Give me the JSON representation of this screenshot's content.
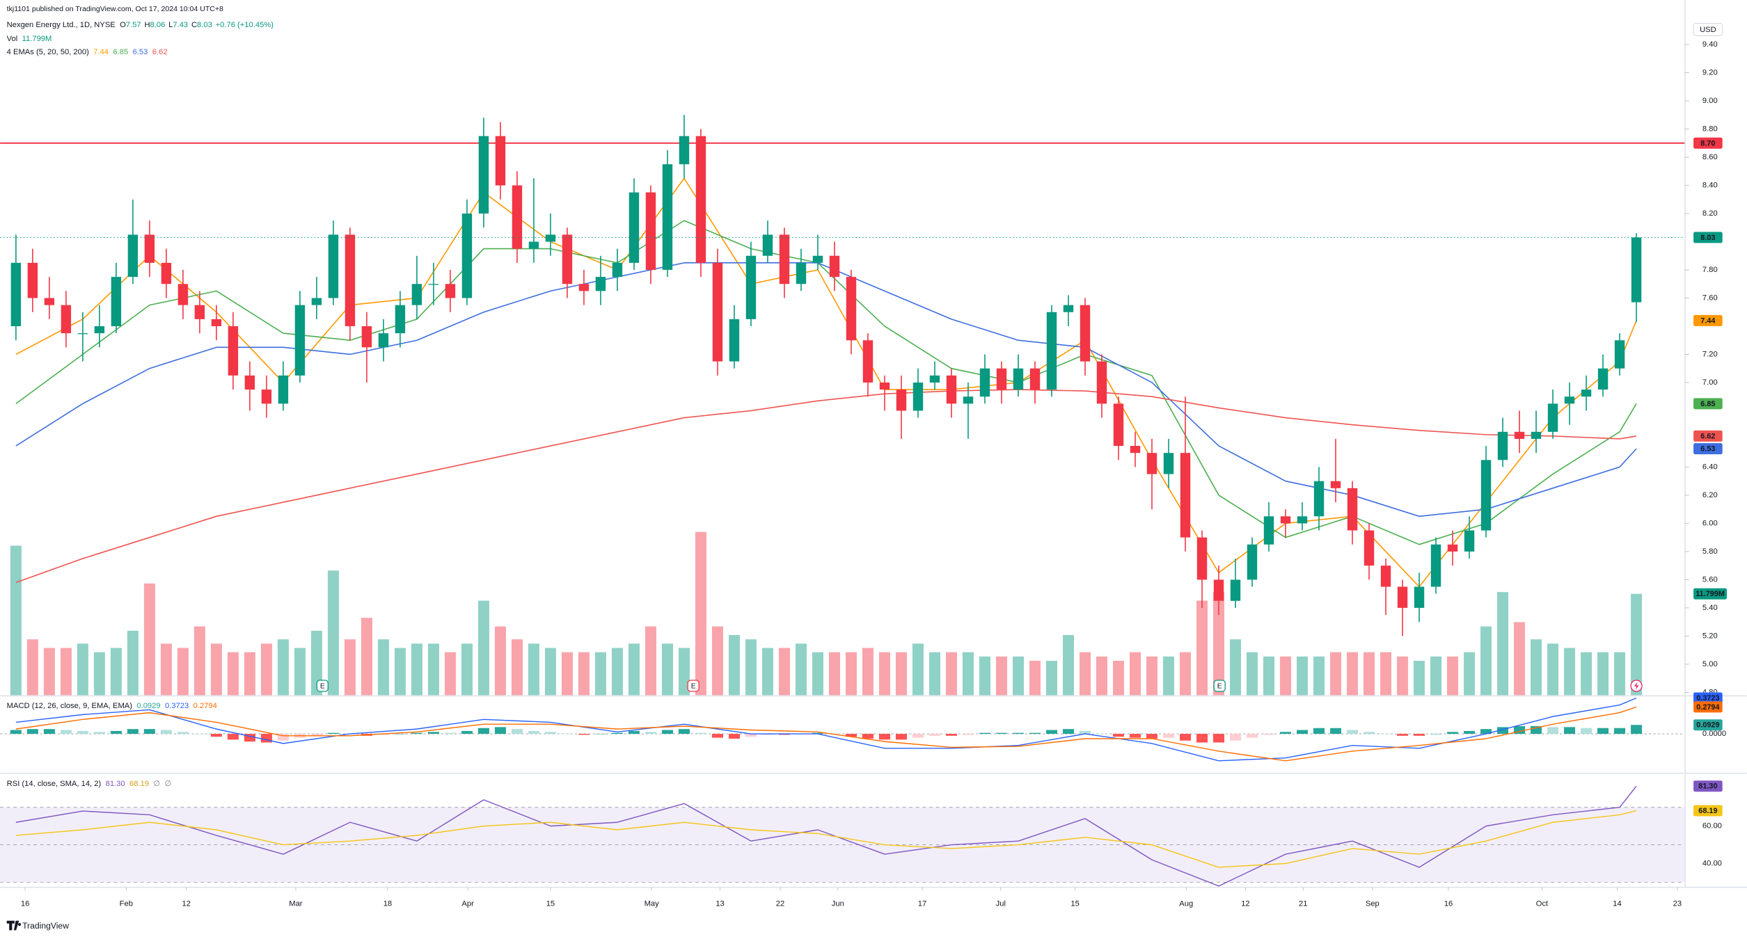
{
  "chart_data": {
    "type": "candlestick",
    "publisher": "tkj1101 published on TradingView.com, Oct 17, 2024 10:04 UTC+8",
    "title": "Nexgen Energy Ltd., 1D, NYSE",
    "ohlc_legend": {
      "o": "O",
      "h": "H",
      "l": "L",
      "c": "C",
      "change": "+0.76 (+10.45%)"
    },
    "currency": "USD",
    "up_color": "#089981",
    "down_color": "#f23645",
    "x": [
      -1,
      1,
      3,
      5,
      7,
      9,
      11,
      13,
      15,
      17,
      19,
      21,
      23,
      25,
      27,
      29,
      31,
      33,
      35,
      37,
      39,
      41,
      43,
      45,
      47,
      49,
      51,
      53,
      55,
      57,
      59,
      61,
      63,
      65,
      67,
      69,
      71,
      73,
      75,
      77,
      79,
      81,
      83,
      85,
      87,
      89,
      91,
      93,
      95,
      97,
      99,
      101,
      103,
      105,
      107,
      109,
      111,
      113,
      115,
      117,
      119,
      121,
      123,
      125,
      127,
      129,
      131,
      133,
      135,
      137,
      139,
      141,
      143,
      145,
      147,
      149,
      151,
      153,
      155,
      157,
      159,
      161,
      163,
      165,
      167,
      169,
      171,
      173,
      175,
      177,
      179,
      181,
      183,
      185,
      187,
      189,
      191,
      193
    ],
    "open": [
      7.4,
      7.85,
      7.6,
      7.55,
      7.35,
      7.35,
      7.4,
      7.75,
      8.05,
      7.85,
      7.7,
      7.55,
      7.45,
      7.4,
      7.05,
      6.95,
      6.85,
      7.05,
      7.55,
      7.6,
      8.05,
      7.4,
      7.25,
      7.35,
      7.55,
      7.7,
      7.7,
      7.6,
      8.2,
      8.75,
      8.4,
      7.95,
      8.0,
      8.05,
      7.7,
      7.65,
      7.75,
      7.85,
      8.35,
      7.8,
      8.55,
      8.75,
      7.85,
      7.15,
      7.45,
      7.9,
      8.05,
      7.7,
      7.85,
      7.9,
      7.75,
      7.3,
      7.0,
      6.95,
      6.8,
      7.0,
      7.05,
      6.85,
      6.9,
      7.1,
      6.95,
      7.1,
      6.95,
      7.5,
      7.55,
      7.15,
      6.85,
      6.55,
      6.5,
      6.35,
      6.5,
      5.9,
      5.6,
      5.45,
      5.6,
      5.85,
      6.05,
      6.0,
      6.05,
      6.3,
      6.25,
      5.95,
      5.7,
      5.55,
      5.4,
      5.55,
      5.85,
      5.8,
      5.95,
      6.45,
      6.65,
      6.6,
      6.65,
      6.85,
      6.9,
      6.95,
      7.1,
      7.57
    ],
    "high": [
      8.05,
      7.95,
      7.75,
      7.65,
      7.5,
      7.55,
      7.85,
      8.3,
      8.15,
      7.95,
      7.8,
      7.65,
      7.55,
      7.5,
      7.15,
      7.05,
      7.15,
      7.65,
      7.75,
      8.15,
      8.1,
      7.5,
      7.45,
      7.65,
      7.9,
      7.85,
      7.8,
      8.3,
      8.88,
      8.85,
      8.5,
      8.45,
      8.2,
      8.1,
      7.8,
      7.9,
      7.95,
      8.45,
      8.4,
      8.65,
      8.9,
      8.8,
      7.95,
      7.55,
      8.0,
      8.15,
      8.1,
      7.95,
      8.05,
      8.0,
      7.8,
      7.35,
      7.05,
      7.05,
      7.1,
      7.15,
      7.1,
      7.0,
      7.2,
      7.15,
      7.2,
      7.15,
      7.55,
      7.62,
      7.6,
      7.2,
      6.9,
      6.65,
      6.6,
      6.6,
      6.9,
      5.95,
      5.7,
      5.75,
      5.9,
      6.15,
      6.1,
      6.15,
      6.4,
      6.6,
      6.3,
      6.0,
      5.75,
      5.6,
      5.65,
      5.9,
      5.95,
      6.05,
      6.55,
      6.75,
      6.8,
      6.8,
      6.95,
      7.0,
      7.05,
      7.2,
      7.35,
      8.06
    ],
    "low": [
      7.3,
      7.5,
      7.45,
      7.25,
      7.15,
      7.25,
      7.35,
      7.7,
      7.75,
      7.6,
      7.45,
      7.35,
      7.3,
      6.95,
      6.8,
      6.75,
      6.8,
      7.0,
      7.45,
      7.55,
      7.3,
      7.0,
      7.15,
      7.25,
      7.45,
      7.55,
      7.5,
      7.55,
      8.1,
      8.3,
      7.85,
      7.85,
      7.9,
      7.6,
      7.55,
      7.55,
      7.65,
      7.8,
      7.7,
      7.75,
      8.45,
      7.75,
      7.05,
      7.1,
      7.4,
      7.85,
      7.6,
      7.65,
      7.8,
      7.65,
      7.2,
      6.9,
      6.8,
      6.6,
      6.75,
      6.95,
      6.75,
      6.6,
      6.85,
      6.85,
      6.9,
      6.85,
      6.9,
      7.4,
      7.05,
      6.75,
      6.45,
      6.4,
      6.1,
      6.25,
      5.8,
      5.4,
      5.35,
      5.4,
      5.55,
      5.8,
      5.9,
      5.95,
      5.95,
      6.15,
      5.85,
      5.6,
      5.35,
      5.2,
      5.3,
      5.5,
      5.7,
      5.75,
      5.9,
      6.4,
      6.5,
      6.5,
      6.6,
      6.7,
      6.8,
      6.9,
      7.05,
      7.43
    ],
    "close": [
      7.85,
      7.6,
      7.55,
      7.35,
      7.35,
      7.4,
      7.75,
      8.05,
      7.85,
      7.7,
      7.55,
      7.45,
      7.4,
      7.05,
      6.95,
      6.85,
      7.05,
      7.55,
      7.6,
      8.05,
      7.4,
      7.25,
      7.35,
      7.55,
      7.7,
      7.7,
      7.6,
      8.2,
      8.75,
      8.4,
      7.95,
      8.0,
      8.05,
      7.7,
      7.65,
      7.75,
      7.85,
      8.35,
      7.8,
      8.55,
      8.75,
      7.85,
      7.15,
      7.45,
      7.9,
      8.05,
      7.7,
      7.85,
      7.9,
      7.75,
      7.3,
      7.0,
      6.95,
      6.8,
      7.0,
      7.05,
      6.85,
      6.9,
      7.1,
      6.95,
      7.1,
      6.95,
      7.5,
      7.55,
      7.15,
      6.85,
      6.55,
      6.5,
      6.35,
      6.5,
      5.9,
      5.6,
      5.45,
      5.6,
      5.85,
      6.05,
      6.0,
      6.05,
      6.3,
      6.25,
      5.95,
      5.7,
      5.55,
      5.4,
      5.55,
      5.85,
      5.8,
      5.95,
      6.45,
      6.65,
      6.6,
      6.65,
      6.85,
      6.9,
      6.95,
      7.1,
      7.3,
      8.03
    ],
    "xlim": [
      -2.9,
      198.5
    ],
    "xticks": [
      {
        "value": 0.1,
        "label": "16"
      },
      {
        "value": 12.2,
        "label": "Feb"
      },
      {
        "value": 19.4,
        "label": "12"
      },
      {
        "value": 32.5,
        "label": "Mar"
      },
      {
        "value": 43.5,
        "label": "18"
      },
      {
        "value": 53.1,
        "label": "Apr"
      },
      {
        "value": 63,
        "label": "15"
      },
      {
        "value": 75.1,
        "label": "May"
      },
      {
        "value": 83.3,
        "label": "13"
      },
      {
        "value": 90.5,
        "label": "22"
      },
      {
        "value": 97.4,
        "label": "Jun"
      },
      {
        "value": 107.5,
        "label": "17"
      },
      {
        "value": 116.9,
        "label": "Jul"
      },
      {
        "value": 125.8,
        "label": "15"
      },
      {
        "value": 139.1,
        "label": "Aug"
      },
      {
        "value": 146.2,
        "label": "12"
      },
      {
        "value": 153.1,
        "label": "21"
      },
      {
        "value": 161.4,
        "label": "Sep"
      },
      {
        "value": 170.5,
        "label": "16"
      },
      {
        "value": 181.7,
        "label": "Oct"
      },
      {
        "value": 190.7,
        "label": "14"
      },
      {
        "value": 197.9,
        "label": "23"
      }
    ],
    "ylim": [
      4.78,
      9.6
    ],
    "yticks": [
      {
        "value": 9.4,
        "label": "9.40"
      },
      {
        "value": 9.2,
        "label": "9.20"
      },
      {
        "value": 9,
        "label": "9.00"
      },
      {
        "value": 8.8,
        "label": "8.80"
      },
      {
        "value": 8.6,
        "label": "8.60"
      },
      {
        "value": 8.4,
        "label": "8.40"
      },
      {
        "value": 8.2,
        "label": "8.20"
      },
      {
        "value": 7.8,
        "label": "7.80"
      },
      {
        "value": 7.6,
        "label": "7.60"
      },
      {
        "value": 7.2,
        "label": "7.20"
      },
      {
        "value": 7,
        "label": "7.00"
      },
      {
        "value": 6.4,
        "label": "6.40"
      },
      {
        "value": 6.2,
        "label": "6.20"
      },
      {
        "value": 6,
        "label": "6.00"
      },
      {
        "value": 5.8,
        "label": "5.80"
      },
      {
        "value": 5.6,
        "label": "5.60"
      },
      {
        "value": 5.4,
        "label": "5.40"
      },
      {
        "value": 5.2,
        "label": "5.20"
      },
      {
        "value": 5,
        "label": "5.00"
      },
      {
        "value": 4.8,
        "label": "4.80"
      }
    ],
    "hline": {
      "value": 8.7,
      "label": "8.70",
      "color": "#f23645"
    },
    "volume": {
      "name": "Vol",
      "ylim": [
        0,
        79
      ],
      "last_label": "11.799M",
      "values": [
        17.4,
        6.5,
        5.5,
        5.5,
        6,
        5,
        5.5,
        7.5,
        13,
        6,
        5.5,
        8,
        6,
        5,
        5,
        6,
        6.5,
        5.5,
        7.5,
        14.5,
        6.5,
        9,
        6.5,
        5.5,
        6,
        6,
        5,
        6,
        11,
        8,
        6.5,
        6,
        5.5,
        5,
        5,
        5,
        5.5,
        6,
        8,
        6,
        5.5,
        19,
        8,
        7,
        6.5,
        5.5,
        5.5,
        6,
        5,
        5,
        5,
        5.5,
        5,
        5,
        6,
        5,
        5,
        5,
        4.5,
        4.5,
        4.5,
        4,
        4,
        7,
        5,
        4.5,
        4,
        5,
        4.5,
        4.5,
        5,
        11,
        12,
        6.5,
        5,
        4.5,
        4.5,
        4.5,
        4.5,
        5,
        5,
        5,
        5,
        4.5,
        4,
        4.5,
        4.5,
        5,
        8,
        12,
        8.5,
        6.5,
        6,
        5.5,
        5,
        5,
        5,
        11.799
      ]
    },
    "ema": {
      "name": "4 EMAs (5, 20, 50, 200)",
      "x": [
        -1,
        7,
        15,
        23,
        31,
        39,
        47,
        55,
        63,
        71,
        79,
        87,
        95,
        103,
        111,
        119,
        127,
        135,
        143,
        151,
        159,
        167,
        175,
        183,
        191,
        193
      ],
      "series": [
        {
          "color": "#ff9800",
          "values": [
            7.2,
            7.45,
            7.9,
            7.5,
            7.0,
            7.55,
            7.6,
            8.35,
            8.0,
            7.8,
            8.45,
            7.7,
            7.8,
            6.95,
            6.95,
            7.0,
            7.3,
            6.45,
            5.65,
            6.0,
            6.05,
            5.55,
            6.15,
            6.75,
            7.15,
            7.44
          ]
        },
        {
          "color": "#4caf50",
          "values": [
            6.85,
            7.2,
            7.55,
            7.65,
            7.35,
            7.3,
            7.45,
            7.95,
            7.95,
            7.85,
            8.15,
            7.95,
            7.85,
            7.4,
            7.1,
            7.0,
            7.2,
            7.05,
            6.2,
            5.9,
            6.05,
            5.85,
            6.0,
            6.35,
            6.65,
            6.85
          ]
        },
        {
          "color": "#3d6ee0",
          "values": [
            6.55,
            6.85,
            7.1,
            7.25,
            7.25,
            7.2,
            7.3,
            7.5,
            7.65,
            7.75,
            7.85,
            7.85,
            7.85,
            7.65,
            7.45,
            7.3,
            7.25,
            7.0,
            6.55,
            6.3,
            6.2,
            6.05,
            6.1,
            6.25,
            6.4,
            6.53
          ]
        },
        {
          "color": "#ef5350",
          "values": [
            5.58,
            5.75,
            5.9,
            6.05,
            6.15,
            6.25,
            6.35,
            6.45,
            6.55,
            6.65,
            6.75,
            6.8,
            6.87,
            6.92,
            6.94,
            6.95,
            6.94,
            6.9,
            6.82,
            6.75,
            6.7,
            6.66,
            6.63,
            6.62,
            6.6,
            6.62
          ]
        }
      ]
    },
    "earnings": {
      "label": "E",
      "x": [
        35.7,
        80.1,
        143.1
      ]
    },
    "macd": {
      "name": "MACD (12, 26, close, 9, EMA, EMA)",
      "ylim": [
        -0.38,
        0.36
      ],
      "yticks": [
        {
          "value": 0,
          "label": "0.0000"
        }
      ],
      "x": [
        -1,
        7,
        15,
        23,
        31,
        39,
        47,
        55,
        63,
        71,
        79,
        87,
        95,
        103,
        111,
        119,
        127,
        135,
        143,
        151,
        159,
        167,
        175,
        183,
        191,
        193
      ],
      "macd": {
        "color": "#2962ff",
        "values": [
          0.12,
          0.2,
          0.25,
          0.05,
          -0.1,
          0.0,
          0.05,
          0.15,
          0.12,
          0.02,
          0.1,
          0.0,
          0.0,
          -0.15,
          -0.15,
          -0.12,
          0.0,
          -0.1,
          -0.28,
          -0.25,
          -0.12,
          -0.15,
          0.0,
          0.18,
          0.3,
          0.3723
        ]
      },
      "signal": {
        "color": "#ff6d00",
        "values": [
          0.05,
          0.15,
          0.22,
          0.12,
          -0.02,
          -0.02,
          0.02,
          0.1,
          0.1,
          0.05,
          0.08,
          0.04,
          0.02,
          -0.08,
          -0.14,
          -0.13,
          -0.05,
          -0.05,
          -0.18,
          -0.28,
          -0.18,
          -0.12,
          -0.05,
          0.1,
          0.22,
          0.2794
        ]
      },
      "histogram_color": "#26a69a",
      "histogram": [
        0.04,
        0.05,
        0.05,
        0.04,
        0.03,
        0.02,
        0.03,
        0.05,
        0.05,
        0.04,
        0.02,
        0.0,
        -0.03,
        -0.06,
        -0.08,
        -0.09,
        -0.07,
        -0.04,
        -0.02,
        0.01,
        0.0,
        -0.02,
        -0.01,
        0.0,
        0.01,
        0.02,
        0.01,
        0.03,
        0.06,
        0.07,
        0.05,
        0.03,
        0.02,
        0.0,
        -0.01,
        0.0,
        0.01,
        0.03,
        0.02,
        0.04,
        0.05,
        0.01,
        -0.04,
        -0.05,
        -0.03,
        -0.01,
        -0.01,
        0.0,
        0.01,
        0.0,
        -0.03,
        -0.05,
        -0.06,
        -0.06,
        -0.04,
        -0.02,
        -0.02,
        -0.01,
        0.01,
        0.01,
        0.01,
        0.01,
        0.04,
        0.05,
        0.03,
        0.0,
        -0.03,
        -0.04,
        -0.05,
        -0.04,
        -0.07,
        -0.09,
        -0.09,
        -0.07,
        -0.04,
        -0.01,
        0.02,
        0.04,
        0.06,
        0.06,
        0.04,
        0.02,
        0.0,
        -0.02,
        -0.02,
        0.0,
        0.02,
        0.03,
        0.05,
        0.07,
        0.08,
        0.08,
        0.07,
        0.07,
        0.06,
        0.06,
        0.06,
        0.0929
      ]
    },
    "rsi": {
      "name": "RSI (14, close, SMA, 14, 2)",
      "ylim": [
        27.9,
        86.7
      ],
      "yticks": [
        {
          "value": 60,
          "label": "60.00"
        },
        {
          "value": 40,
          "label": "40.00"
        }
      ],
      "bands": [
        70,
        50,
        30
      ],
      "x": [
        -1,
        7,
        15,
        23,
        31,
        39,
        47,
        55,
        63,
        71,
        79,
        87,
        95,
        103,
        111,
        119,
        127,
        135,
        143,
        151,
        159,
        167,
        175,
        183,
        191,
        193
      ],
      "rsi": {
        "color": "#7e57c2",
        "last_label": "81.30",
        "values": [
          62,
          68,
          66,
          55,
          45,
          62,
          52,
          74,
          60,
          62,
          72,
          52,
          58,
          45,
          50,
          52,
          64,
          42,
          28,
          45,
          52,
          38,
          60,
          66,
          70,
          81.3
        ]
      },
      "sma": {
        "color": "#f5c518",
        "values": [
          55,
          58,
          62,
          58,
          50,
          52,
          55,
          60,
          62,
          58,
          62,
          58,
          56,
          50,
          48,
          50,
          54,
          50,
          38,
          40,
          48,
          45,
          52,
          62,
          66,
          68.19
        ]
      },
      "na_labels": [
        "∅",
        "∅"
      ]
    },
    "footer": "TradingView"
  }
}
